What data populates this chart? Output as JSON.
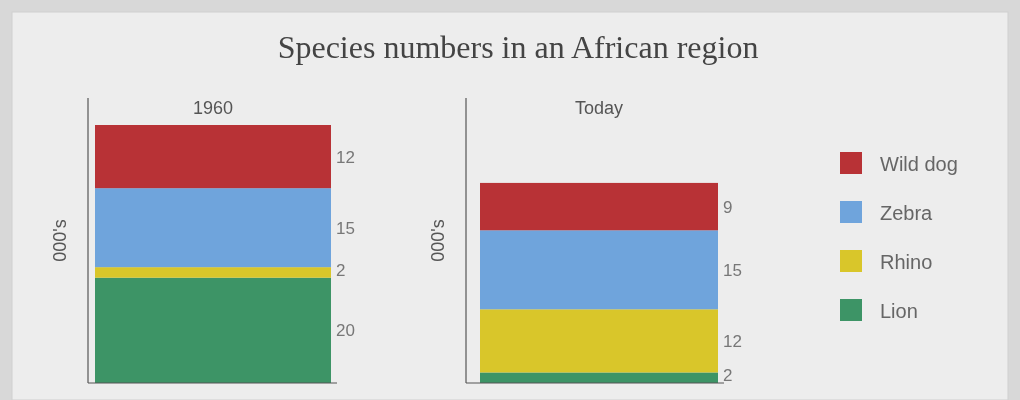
{
  "chart_data": [
    {
      "type": "bar",
      "title": "Species numbers in an African region",
      "subtitle": "1960",
      "categories": [
        null
      ],
      "ylabel": "000's",
      "stacked": true,
      "data_labels": true,
      "series": [
        {
          "color": "#3d9466",
          "values": [
            20
          ]
        },
        {
          "color": "#d9c62a",
          "values": [
            2
          ]
        },
        {
          "color": "#6fa4dc",
          "values": [
            15
          ]
        },
        {
          "color": "#b83236",
          "values": [
            12
          ]
        }
      ]
    },
    {
      "type": "bar",
      "title": "Today",
      "categories": [
        null
      ],
      "ylabel": "000's",
      "stacked": true,
      "data_labels": true,
      "legend": "right",
      "series": [
        {
          "name": "Lion",
          "color": "#3d9466",
          "values": [
            2
          ]
        },
        {
          "name": "Rhino",
          "color": "#d9c62a",
          "values": [
            12
          ]
        },
        {
          "name": "Zebra",
          "color": "#6fa4dc",
          "values": [
            15
          ]
        },
        {
          "name": "Wild dog",
          "color": "#b83236",
          "values": [
            9
          ]
        }
      ]
    }
  ]
}
